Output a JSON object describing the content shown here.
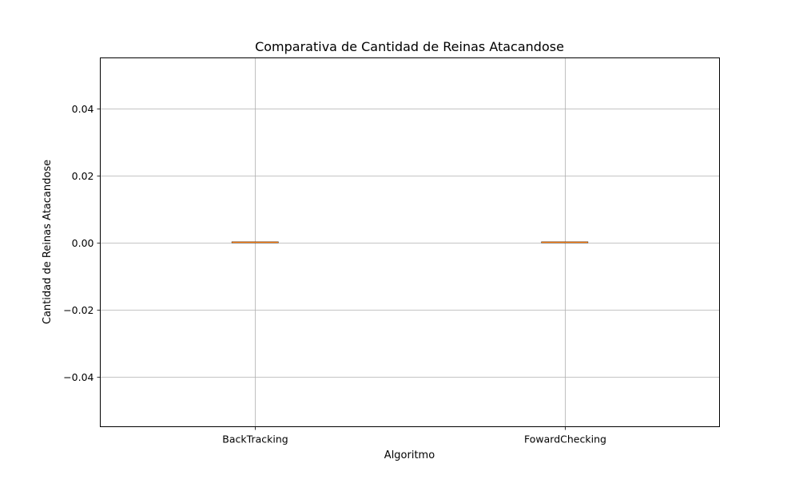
{
  "chart_data": {
    "type": "box",
    "title": "Comparativa de Cantidad de Reinas Atacandose",
    "xlabel": "Algoritmo",
    "ylabel": "Cantidad de Reinas Atacandose",
    "categories": [
      "BackTracking",
      "FowardChecking"
    ],
    "boxes": [
      {
        "category": "BackTracking",
        "min": 0,
        "q1": 0,
        "median": 0,
        "q3": 0,
        "max": 0
      },
      {
        "category": "FowardChecking",
        "min": 0,
        "q1": 0,
        "median": 0,
        "q3": 0,
        "max": 0
      }
    ],
    "ylim": [
      -0.055,
      0.055
    ],
    "yticks": [
      -0.04,
      -0.02,
      0.0,
      0.02,
      0.04
    ],
    "ytick_labels": [
      "−0.04",
      "−0.02",
      "0.00",
      "0.02",
      "0.04"
    ],
    "grid": true,
    "colors": {
      "grid": "#b0b0b0",
      "median": "#ff7f0e",
      "box": "#000000"
    }
  }
}
